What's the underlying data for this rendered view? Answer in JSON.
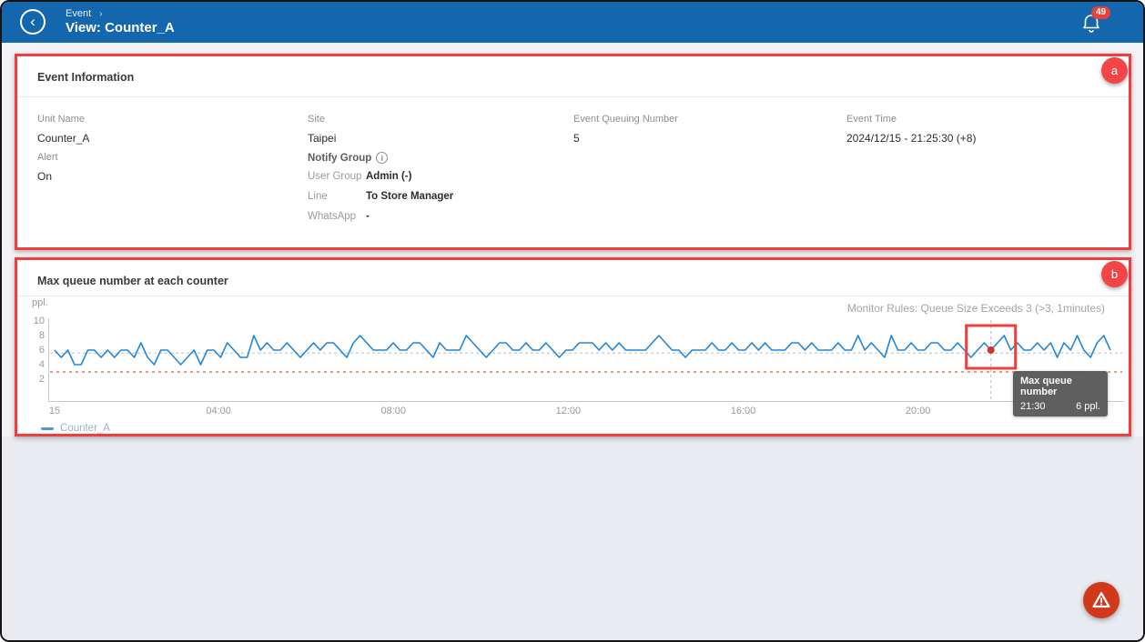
{
  "header": {
    "breadcrumb": "Event",
    "breadcrumb_sep": "›",
    "title": "View: Counter_A",
    "back_glyph": "‹",
    "notification_count": "49"
  },
  "annotations": {
    "a": "a",
    "b": "b"
  },
  "event_info": {
    "title": "Event Information",
    "fields": [
      {
        "label": "Unit Name",
        "value": "Counter_A"
      },
      {
        "label": "Site",
        "value": "Taipei"
      },
      {
        "label": "Event Queuing Number",
        "value": "5"
      },
      {
        "label": "Event Time",
        "value": "2024/12/15 - 21:25:30 (+8)"
      }
    ],
    "alert": {
      "label": "Alert",
      "value": "On"
    },
    "notify_group": {
      "label": "Notify Group",
      "info_glyph": "i",
      "rows": [
        {
          "label": "User Group",
          "value": "Admin (-)"
        },
        {
          "label": "Line",
          "value": "To Store Manager"
        },
        {
          "label": "WhatsApp",
          "value": "-"
        }
      ]
    }
  },
  "chart_panel": {
    "title": "Max queue number at each counter",
    "monitor_rules": "Monitor Rules: Queue Size Exceeds 3 (>3, 1minutes)"
  },
  "chart_data": {
    "type": "line",
    "title": "Max queue number at each counter",
    "ylabel": "ppl.",
    "ylim": [
      0,
      10
    ],
    "y_ticks": [
      10,
      8,
      6,
      4,
      2
    ],
    "x_ticks": [
      "15",
      "04:00",
      "08:00",
      "12:00",
      "16:00",
      "20:00"
    ],
    "x_tick_hours": [
      0.25,
      4,
      8,
      12,
      16,
      20
    ],
    "x_range": [
      0.25,
      24.4
    ],
    "grid": false,
    "legend_position": "bottom-left",
    "series": [
      {
        "name": "Counter_A",
        "color": "#2287d8",
        "values": [
          6,
          5,
          6,
          4,
          4,
          6,
          6,
          5,
          6,
          5,
          6,
          6,
          5,
          7,
          5,
          4,
          6,
          6,
          5,
          4,
          5,
          6,
          4,
          6,
          6,
          5,
          7,
          6,
          5,
          5,
          8,
          6,
          7,
          6,
          6,
          7,
          6,
          5,
          6,
          7,
          6,
          7,
          7,
          6,
          5,
          7,
          8,
          7,
          6,
          6,
          6,
          7,
          6,
          6,
          7,
          7,
          6,
          5,
          7,
          6,
          6,
          6,
          8,
          7,
          6,
          5,
          6,
          7,
          7,
          6,
          6,
          7,
          6,
          6,
          7,
          6,
          5,
          6,
          6,
          7,
          7,
          7,
          6,
          7,
          6,
          7,
          6,
          6,
          6,
          6,
          7,
          8,
          7,
          6,
          6,
          5,
          6,
          6,
          6,
          7,
          6,
          6,
          7,
          6,
          6,
          7,
          6,
          7,
          6,
          6,
          6,
          7,
          7,
          6,
          7,
          6,
          6,
          6,
          7,
          6,
          6,
          8,
          6,
          7,
          6,
          5,
          8,
          6,
          6,
          7,
          6,
          6,
          7,
          7,
          6,
          6,
          7,
          6,
          5,
          6,
          7,
          6,
          7,
          8,
          6,
          7,
          6,
          6,
          7,
          6,
          7,
          5,
          7,
          6,
          8,
          6,
          5,
          7,
          8,
          6
        ]
      }
    ],
    "threshold_line": {
      "value": 3,
      "color": "#ef8a7e",
      "style": "dashed"
    },
    "average_line": {
      "value": 5.6,
      "color": "#bdbdbd",
      "style": "dashed"
    },
    "highlight": {
      "index": 141,
      "tooltip_title": "Max queue number",
      "time": "21:30",
      "value_label": "6 ppl.",
      "dot_color": "#d93025",
      "box_color": "#f23d3d"
    }
  },
  "fab": {
    "icon": "alert-triangle"
  }
}
